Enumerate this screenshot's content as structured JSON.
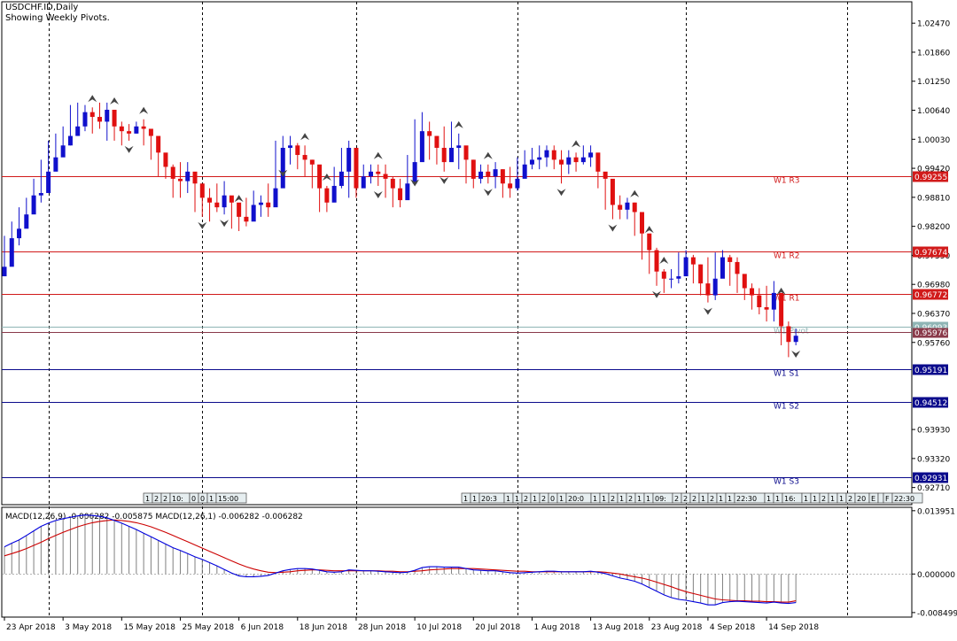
{
  "header": {
    "symbol_line": "USDCHF.ID,Daily",
    "indicator_line": "Showing Weekly Pivots."
  },
  "colors": {
    "bull": "#1010cc",
    "bear": "#e01010",
    "resistance": "#d11a1a",
    "support": "#0b0b8c",
    "pivot": "#8fb5b5",
    "current": "#8a3a4a",
    "macd_line": "#0000dd",
    "signal_line": "#cc0000",
    "histogram": "#808080",
    "grid": "#000000"
  },
  "chart_data": [
    {
      "type": "candlestick",
      "y_ticks": [
        "1.02470",
        "1.01860",
        "1.01250",
        "1.00640",
        "1.00030",
        "0.99420",
        "0.98810",
        "0.98200",
        "0.97590",
        "0.96980",
        "0.96370",
        "0.95760",
        "0.93930",
        "0.93320",
        "0.92710"
      ],
      "ylim": [
        0.9235,
        1.0292
      ],
      "x_labels": [
        {
          "text": "23 Apr 2018",
          "bar": 0
        },
        {
          "text": "3 May 2018",
          "bar": 8
        },
        {
          "text": "15 May 2018",
          "bar": 16
        },
        {
          "text": "25 May 2018",
          "bar": 24
        },
        {
          "text": "6 Jun 2018",
          "bar": 32
        },
        {
          "text": "18 Jun 2018",
          "bar": 40
        },
        {
          "text": "28 Jun 2018",
          "bar": 48
        },
        {
          "text": "10 Jul 2018",
          "bar": 56
        },
        {
          "text": "20 Jul 2018",
          "bar": 64
        },
        {
          "text": "1 Aug 2018",
          "bar": 72
        },
        {
          "text": "13 Aug 2018",
          "bar": 80
        },
        {
          "text": "23 Aug 2018",
          "bar": 88
        },
        {
          "text": "4 Sep 2018",
          "bar": 96
        },
        {
          "text": "14 Sep 2018",
          "bar": 104
        }
      ],
      "week_separators": [
        6,
        27,
        48,
        70,
        93,
        115
      ],
      "pivots": [
        {
          "label": "W1 R3",
          "value": 0.99255,
          "kind": "resistance"
        },
        {
          "label": "W1 R2",
          "value": 0.97674,
          "kind": "resistance"
        },
        {
          "label": "W1 R1",
          "value": 0.96772,
          "kind": "resistance"
        },
        {
          "label": "W1 Pivot",
          "value": 0.96093,
          "kind": "pivot"
        },
        {
          "label": "W1 S1",
          "value": 0.95191,
          "kind": "support"
        },
        {
          "label": "W1 S2",
          "value": 0.94512,
          "kind": "support"
        },
        {
          "label": "W1 S3",
          "value": 0.92931,
          "kind": "support"
        }
      ],
      "current_price": "0.95976",
      "current_value": 0.95976,
      "closes": [
        0.9735,
        0.9795,
        0.9815,
        0.9845,
        0.9885,
        0.989,
        0.9935,
        0.9965,
        0.999,
        1.001,
        1.003,
        1.006,
        1.005,
        1.004,
        1.0065,
        1.003,
        1.002,
        1.0015,
        1.003,
        1.0025,
        1.001,
        0.9975,
        0.9945,
        0.992,
        0.9915,
        0.9935,
        0.991,
        0.988,
        0.987,
        0.986,
        0.9885,
        0.987,
        0.984,
        0.983,
        0.9865,
        0.987,
        0.986,
        0.99,
        0.9985,
        0.999,
        0.997,
        0.996,
        0.995,
        0.99,
        0.987,
        0.9905,
        0.9935,
        0.9985,
        0.99,
        0.9925,
        0.9935,
        0.993,
        0.992,
        0.99,
        0.9875,
        0.991,
        0.9955,
        1.002,
        1.001,
        0.9985,
        0.9955,
        0.9985,
        0.999,
        0.996,
        0.992,
        0.9935,
        0.9925,
        0.994,
        0.991,
        0.99,
        0.992,
        0.995,
        0.996,
        0.9965,
        0.998,
        0.996,
        0.995,
        0.9965,
        0.9955,
        0.9965,
        0.9975,
        0.9935,
        0.992,
        0.9865,
        0.9855,
        0.987,
        0.985,
        0.9805,
        0.977,
        0.9725,
        0.971,
        0.971,
        0.9715,
        0.9755,
        0.974,
        0.97,
        0.9675,
        0.971,
        0.9755,
        0.9745,
        0.972,
        0.969,
        0.9675,
        0.965,
        0.9645,
        0.968,
        0.961,
        0.9577,
        0.959
      ],
      "highs": [
        0.98,
        0.983,
        0.986,
        0.988,
        0.992,
        0.996,
        1.0,
        1.0015,
        1.003,
        1.0075,
        1.008,
        1.0075,
        1.007,
        1.008,
        1.008,
        1.0065,
        1.004,
        1.0035,
        1.004,
        1.0045,
        1.0015,
        0.9985,
        0.996,
        0.995,
        0.9955,
        0.9955,
        0.993,
        0.99,
        0.99,
        0.991,
        0.9915,
        0.988,
        0.986,
        0.988,
        0.9895,
        0.9885,
        0.991,
        1.0,
        1.001,
        1.001,
        0.9995,
        0.999,
        0.996,
        0.992,
        0.9905,
        0.9945,
        0.9985,
        1.0,
        0.9955,
        0.995,
        0.995,
        0.995,
        0.995,
        0.9925,
        0.992,
        0.997,
        1.0045,
        1.006,
        1.004,
        1.001,
        1.003,
        1.004,
        1.0015,
        0.998,
        0.996,
        0.995,
        0.995,
        0.9955,
        0.994,
        0.9945,
        0.9965,
        0.998,
        0.9985,
        0.999,
        0.999,
        0.999,
        0.998,
        0.998,
        0.9975,
        0.999,
        0.999,
        0.995,
        0.9925,
        0.988,
        0.9885,
        0.988,
        0.987,
        0.983,
        0.9795,
        0.9775,
        0.973,
        0.973,
        0.9765,
        0.977,
        0.976,
        0.974,
        0.9755,
        0.9765,
        0.977,
        0.976,
        0.9755,
        0.9715,
        0.97,
        0.969,
        0.9695,
        0.9705,
        0.9665,
        0.962,
        0.9605
      ],
      "lows": [
        0.972,
        0.975,
        0.978,
        0.982,
        0.986,
        0.987,
        0.992,
        0.995,
        0.9975,
        0.999,
        1.001,
        1.002,
        1.0015,
        1.0025,
        1.0,
        1.0,
        0.999,
        1.0,
        1.0015,
        0.999,
        0.996,
        0.9925,
        0.992,
        0.988,
        0.988,
        0.989,
        0.985,
        0.984,
        0.983,
        0.985,
        0.9845,
        0.9815,
        0.981,
        0.982,
        0.984,
        0.984,
        0.984,
        0.988,
        0.995,
        0.995,
        0.994,
        0.9925,
        0.99,
        0.985,
        0.985,
        0.988,
        0.99,
        0.988,
        0.988,
        0.991,
        0.991,
        0.9905,
        0.988,
        0.986,
        0.986,
        0.9895,
        0.993,
        0.9985,
        0.996,
        0.995,
        0.9935,
        0.996,
        0.994,
        0.991,
        0.99,
        0.991,
        0.991,
        0.99,
        0.988,
        0.988,
        0.9895,
        0.993,
        0.994,
        0.994,
        0.9945,
        0.994,
        0.991,
        0.993,
        0.9935,
        0.995,
        0.9945,
        0.99,
        0.9855,
        0.9835,
        0.9835,
        0.9835,
        0.98,
        0.975,
        0.972,
        0.9695,
        0.968,
        0.969,
        0.97,
        0.9725,
        0.97,
        0.9675,
        0.966,
        0.9665,
        0.972,
        0.9695,
        0.968,
        0.9665,
        0.9645,
        0.9635,
        0.962,
        0.962,
        0.957,
        0.9545,
        0.957
      ],
      "fractals_up": [
        12,
        15,
        19,
        32,
        41,
        44,
        51,
        62,
        66,
        78,
        86,
        88,
        90,
        106,
        112,
        116
      ],
      "fractals_down": [
        17,
        27,
        30,
        38,
        51,
        56,
        60,
        66,
        76,
        83,
        89,
        96,
        108,
        110,
        113,
        119
      ],
      "time_strip_left": [
        "1",
        "2",
        "2",
        "10:",
        "0",
        "0",
        "1",
        "15:00"
      ],
      "time_strip_right": [
        "1",
        "1",
        "20:3",
        "1",
        "1",
        "2",
        "1",
        "2",
        "0",
        "1",
        "20:0",
        "1",
        "1",
        "2",
        "1",
        "2",
        "1",
        "1",
        "09:",
        "2",
        "2",
        "2",
        "1",
        "2",
        "1",
        "1",
        "22:30",
        "1",
        "1",
        "16:",
        "1",
        "1",
        "2",
        "1",
        "1",
        "2",
        "20",
        "E",
        "",
        "F",
        "22:30"
      ]
    },
    {
      "type": "line",
      "title": "MACD(12,26,9) -0.006282 -0.005875 MACD(12,26,1) -0.006282 -0.006282",
      "y_ticks": [
        "0.013951",
        "0.000000",
        "-0.008499"
      ],
      "ylim": [
        -0.0095,
        0.0147
      ],
      "macd": [
        0.006,
        0.0068,
        0.0075,
        0.0085,
        0.0095,
        0.0105,
        0.0112,
        0.0118,
        0.0122,
        0.0125,
        0.0128,
        0.013,
        0.0129,
        0.0127,
        0.0124,
        0.0118,
        0.0112,
        0.0105,
        0.0098,
        0.009,
        0.0082,
        0.0074,
        0.0066,
        0.0058,
        0.0052,
        0.0045,
        0.0038,
        0.0032,
        0.0025,
        0.0018,
        0.001,
        0.0002,
        -0.0004,
        -0.0006,
        -0.0006,
        -0.0005,
        -0.0003,
        0.0002,
        0.0007,
        0.001,
        0.0012,
        0.0012,
        0.0011,
        0.0008,
        0.0005,
        0.0004,
        0.0005,
        0.0009,
        0.0008,
        0.0007,
        0.0007,
        0.0006,
        0.0005,
        0.0004,
        0.0003,
        0.0004,
        0.0008,
        0.0014,
        0.0016,
        0.0016,
        0.0015,
        0.0015,
        0.0015,
        0.0012,
        0.0009,
        0.0008,
        0.0007,
        0.0007,
        0.0005,
        0.0003,
        0.0002,
        0.0003,
        0.0004,
        0.0005,
        0.0006,
        0.0006,
        0.0005,
        0.0005,
        0.0005,
        0.0005,
        0.0006,
        0.0004,
        0.0001,
        -0.0004,
        -0.0009,
        -0.0012,
        -0.0016,
        -0.0022,
        -0.003,
        -0.0038,
        -0.0046,
        -0.0052,
        -0.0056,
        -0.0058,
        -0.0061,
        -0.0064,
        -0.0068,
        -0.0068,
        -0.0063,
        -0.0061,
        -0.006,
        -0.0061,
        -0.0062,
        -0.0063,
        -0.0064,
        -0.0062,
        -0.0064,
        -0.0065,
        -0.0063
      ],
      "signal": [
        0.004,
        0.0045,
        0.005,
        0.0056,
        0.0063,
        0.007,
        0.0078,
        0.0085,
        0.0092,
        0.0098,
        0.0104,
        0.0109,
        0.0113,
        0.0116,
        0.0118,
        0.0119,
        0.0118,
        0.0116,
        0.0113,
        0.0109,
        0.0104,
        0.0098,
        0.0092,
        0.0085,
        0.0078,
        0.0071,
        0.0064,
        0.0057,
        0.005,
        0.0043,
        0.0036,
        0.0029,
        0.0022,
        0.0016,
        0.0011,
        0.0007,
        0.0004,
        0.0003,
        0.0004,
        0.0005,
        0.0007,
        0.0008,
        0.0009,
        0.0009,
        0.0008,
        0.0007,
        0.0007,
        0.0007,
        0.0007,
        0.0007,
        0.0007,
        0.0007,
        0.0006,
        0.0006,
        0.0005,
        0.0005,
        0.0006,
        0.0007,
        0.0009,
        0.001,
        0.0011,
        0.0012,
        0.0012,
        0.0012,
        0.0012,
        0.0011,
        0.001,
        0.0009,
        0.0008,
        0.0007,
        0.0006,
        0.0006,
        0.0005,
        0.0005,
        0.0005,
        0.0005,
        0.0005,
        0.0005,
        0.0005,
        0.0005,
        0.0005,
        0.0005,
        0.0004,
        0.0002,
        0.0,
        -0.0003,
        -0.0006,
        -0.0009,
        -0.0013,
        -0.0018,
        -0.0023,
        -0.0028,
        -0.0034,
        -0.0039,
        -0.0043,
        -0.0047,
        -0.0051,
        -0.0055,
        -0.0057,
        -0.0058,
        -0.0059,
        -0.0059,
        -0.006,
        -0.006,
        -0.0061,
        -0.0061,
        -0.0062,
        -0.0062,
        -0.0059
      ]
    }
  ]
}
